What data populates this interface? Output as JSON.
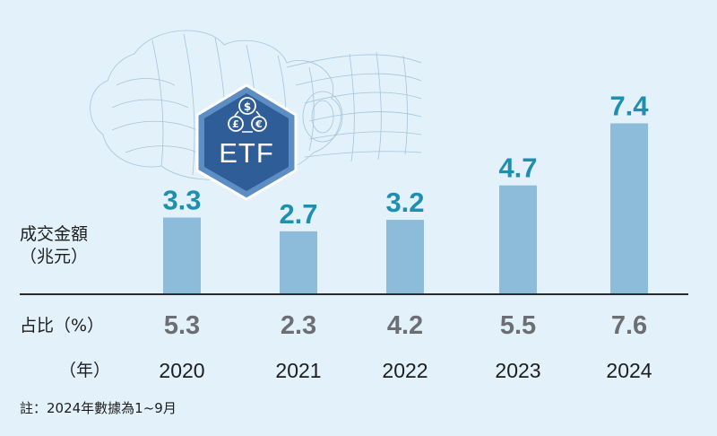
{
  "chart_data": {
    "type": "bar",
    "categories": [
      "2020",
      "2021",
      "2022",
      "2023",
      "2024"
    ],
    "values": [
      3.3,
      2.7,
      3.2,
      4.7,
      7.4
    ],
    "value_labels": [
      "3.3",
      "2.7",
      "3.2",
      "4.7",
      "7.4"
    ],
    "ylabel": "成交金額（兆元）",
    "ylabel_lines": [
      "成交金額",
      "（兆元）"
    ],
    "ylim": [
      0,
      8.2
    ],
    "share": {
      "label": "占比（%）",
      "values": [
        5.3,
        2.3,
        4.2,
        5.5,
        7.6
      ],
      "value_labels": [
        "5.3",
        "2.3",
        "4.2",
        "5.5",
        "7.6"
      ]
    },
    "xlabel": "（年）",
    "note": "註：2024年數據為1~9月",
    "grid": false,
    "legend": "none"
  },
  "illustration": {
    "badge_text": "ETF",
    "icon_names": [
      "dollar-coin-icon",
      "pound-coin-icon",
      "euro-coin-icon"
    ],
    "coin_glyphs": [
      "$",
      "£",
      "€"
    ]
  },
  "colors": {
    "background": "#e3f1fa",
    "bar": "#8cbcd9",
    "value_text": "#1f8fb0",
    "share_text": "#6b6e72",
    "text": "#1d1d1d",
    "baseline": "#2a2a2a",
    "badge_outer": "#5c8ec4",
    "badge_inner": "#2f5d97"
  }
}
